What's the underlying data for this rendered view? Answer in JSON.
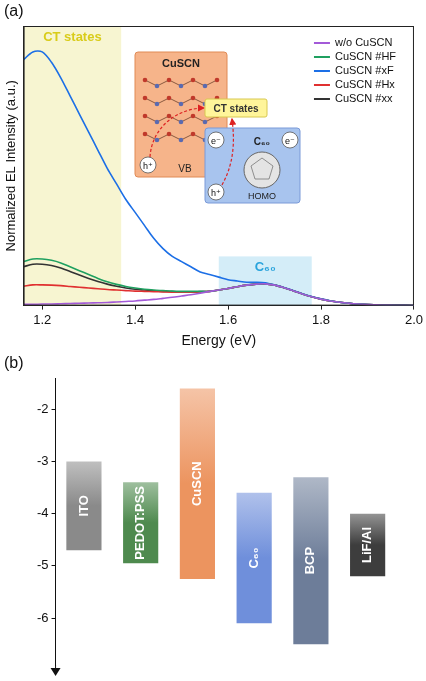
{
  "chart_data": [
    {
      "panel": "(a)",
      "type": "line",
      "x_label": "Energy (eV)",
      "y_label": "Normalized EL Intensity (a.u.)",
      "x": [
        1.16,
        1.18,
        1.2,
        1.22,
        1.24,
        1.26,
        1.28,
        1.3,
        1.32,
        1.34,
        1.36,
        1.38,
        1.4,
        1.42,
        1.44,
        1.46,
        1.48,
        1.5,
        1.52,
        1.54,
        1.56,
        1.58,
        1.6,
        1.62,
        1.64,
        1.66,
        1.68,
        1.7,
        1.72,
        1.74,
        1.76,
        1.78,
        1.8,
        1.82,
        1.84,
        1.86,
        1.88,
        1.9,
        1.92,
        1.94,
        1.96,
        1.98,
        2.0
      ],
      "series": [
        {
          "name": "w/o CuSCN",
          "color": "#a35ad8",
          "values": [
            0.005,
            0.005,
            0.006,
            0.006,
            0.007,
            0.008,
            0.009,
            0.01,
            0.011,
            0.012,
            0.014,
            0.016,
            0.018,
            0.021,
            0.024,
            0.028,
            0.032,
            0.037,
            0.042,
            0.048,
            0.055,
            0.06,
            0.066,
            0.073,
            0.079,
            0.083,
            0.084,
            0.079,
            0.069,
            0.057,
            0.045,
            0.034,
            0.025,
            0.018,
            0.013,
            0.009,
            0.006,
            0.004,
            0.003,
            0.002,
            0.001,
            0.001,
            0
          ]
        },
        {
          "name": "CuSCN #HF",
          "color": "#1fa060",
          "values": [
            0.17,
            0.18,
            0.18,
            0.175,
            0.165,
            0.15,
            0.135,
            0.12,
            0.105,
            0.092,
            0.082,
            0.074,
            0.068,
            0.063,
            0.06,
            0.058,
            0.056,
            0.055,
            0.055,
            0.055,
            0.055,
            0.06,
            0.066,
            0.073,
            0.079,
            0.083,
            0.084,
            0.079,
            0.069,
            0.057,
            0.045,
            0.034,
            0.025,
            0.018,
            0.013,
            0.009,
            0.006,
            0.004,
            0.003,
            0.002,
            0.001,
            0.001,
            0
          ]
        },
        {
          "name": "CuSCN #xF",
          "color": "#1c6fe6",
          "values": [
            0.95,
            0.98,
            0.98,
            0.94,
            0.88,
            0.81,
            0.74,
            0.67,
            0.6,
            0.53,
            0.47,
            0.41,
            0.36,
            0.31,
            0.26,
            0.22,
            0.19,
            0.17,
            0.15,
            0.13,
            0.12,
            0.11,
            0.1,
            0.095,
            0.09,
            0.09,
            0.088,
            0.08,
            0.07,
            0.058,
            0.046,
            0.035,
            0.026,
            0.019,
            0.013,
            0.009,
            0.006,
            0.004,
            0.003,
            0.002,
            0.001,
            0.001,
            0
          ]
        },
        {
          "name": "CuSCN #Hx",
          "color": "#e03030",
          "values": [
            0.075,
            0.08,
            0.08,
            0.079,
            0.077,
            0.074,
            0.071,
            0.068,
            0.065,
            0.062,
            0.06,
            0.058,
            0.056,
            0.055,
            0.054,
            0.053,
            0.052,
            0.052,
            0.052,
            0.053,
            0.055,
            0.06,
            0.066,
            0.073,
            0.079,
            0.083,
            0.084,
            0.079,
            0.069,
            0.057,
            0.045,
            0.034,
            0.025,
            0.018,
            0.013,
            0.009,
            0.006,
            0.004,
            0.003,
            0.002,
            0.001,
            0.001,
            0
          ]
        },
        {
          "name": "CuSCN #xx",
          "color": "#333333",
          "values": [
            0.15,
            0.16,
            0.16,
            0.155,
            0.145,
            0.132,
            0.118,
            0.105,
            0.093,
            0.083,
            0.075,
            0.068,
            0.063,
            0.06,
            0.057,
            0.055,
            0.054,
            0.053,
            0.053,
            0.054,
            0.055,
            0.06,
            0.066,
            0.073,
            0.079,
            0.083,
            0.084,
            0.079,
            0.069,
            0.057,
            0.045,
            0.034,
            0.025,
            0.018,
            0.013,
            0.009,
            0.006,
            0.004,
            0.003,
            0.002,
            0.001,
            0.001,
            0
          ]
        }
      ],
      "xlim": [
        1.16,
        2.0
      ],
      "xticks": [
        1.2,
        1.4,
        1.6,
        1.8,
        {
          "value": 2.0,
          "label": "2.0"
        }
      ],
      "ylim": [
        0,
        1.08
      ],
      "tick_labels": "x",
      "grid": false,
      "legend": "upper right",
      "regions": [
        {
          "label": "CT states",
          "x_range": [
            1.16,
            1.37
          ],
          "color": "#d9cc1a"
        },
        {
          "label": "C₆₀",
          "x_range": [
            1.58,
            1.78
          ],
          "y_range": [
            0,
            0.19
          ],
          "color": "#29a3dc"
        }
      ],
      "inset": {
        "donor": {
          "label": "CuSCN",
          "band": "VB",
          "carrier": "h⁺"
        },
        "state": "CT states",
        "acceptor": {
          "label": "C₆₀",
          "level": "HOMO",
          "carriers": [
            "e⁻",
            "e⁻",
            "h⁺"
          ]
        }
      }
    },
    {
      "panel": "(b)",
      "type": "bar",
      "categories": [
        "ITO",
        "PEDOT:PSS",
        "CuSCN",
        "C₆₀",
        "BCP",
        "LiF/Al"
      ],
      "values": [
        [
          -4.7,
          -3.0
        ],
        [
          -4.95,
          -3.4
        ],
        [
          -5.25,
          -1.6
        ],
        [
          -6.1,
          -3.6
        ],
        [
          -6.5,
          -3.3
        ],
        [
          -5.2,
          -4.0
        ]
      ],
      "colors": [
        "#8a8a8a",
        "#4e8a4e",
        "#ec945f",
        "#6f8fdb",
        "#6d7d99",
        "#3d3d3d"
      ],
      "ylim": [
        -6.9,
        -1.4
      ],
      "yticks": [
        -2,
        -3,
        -4,
        -5,
        -6
      ],
      "tick_labels": "y",
      "grid": false
    }
  ]
}
